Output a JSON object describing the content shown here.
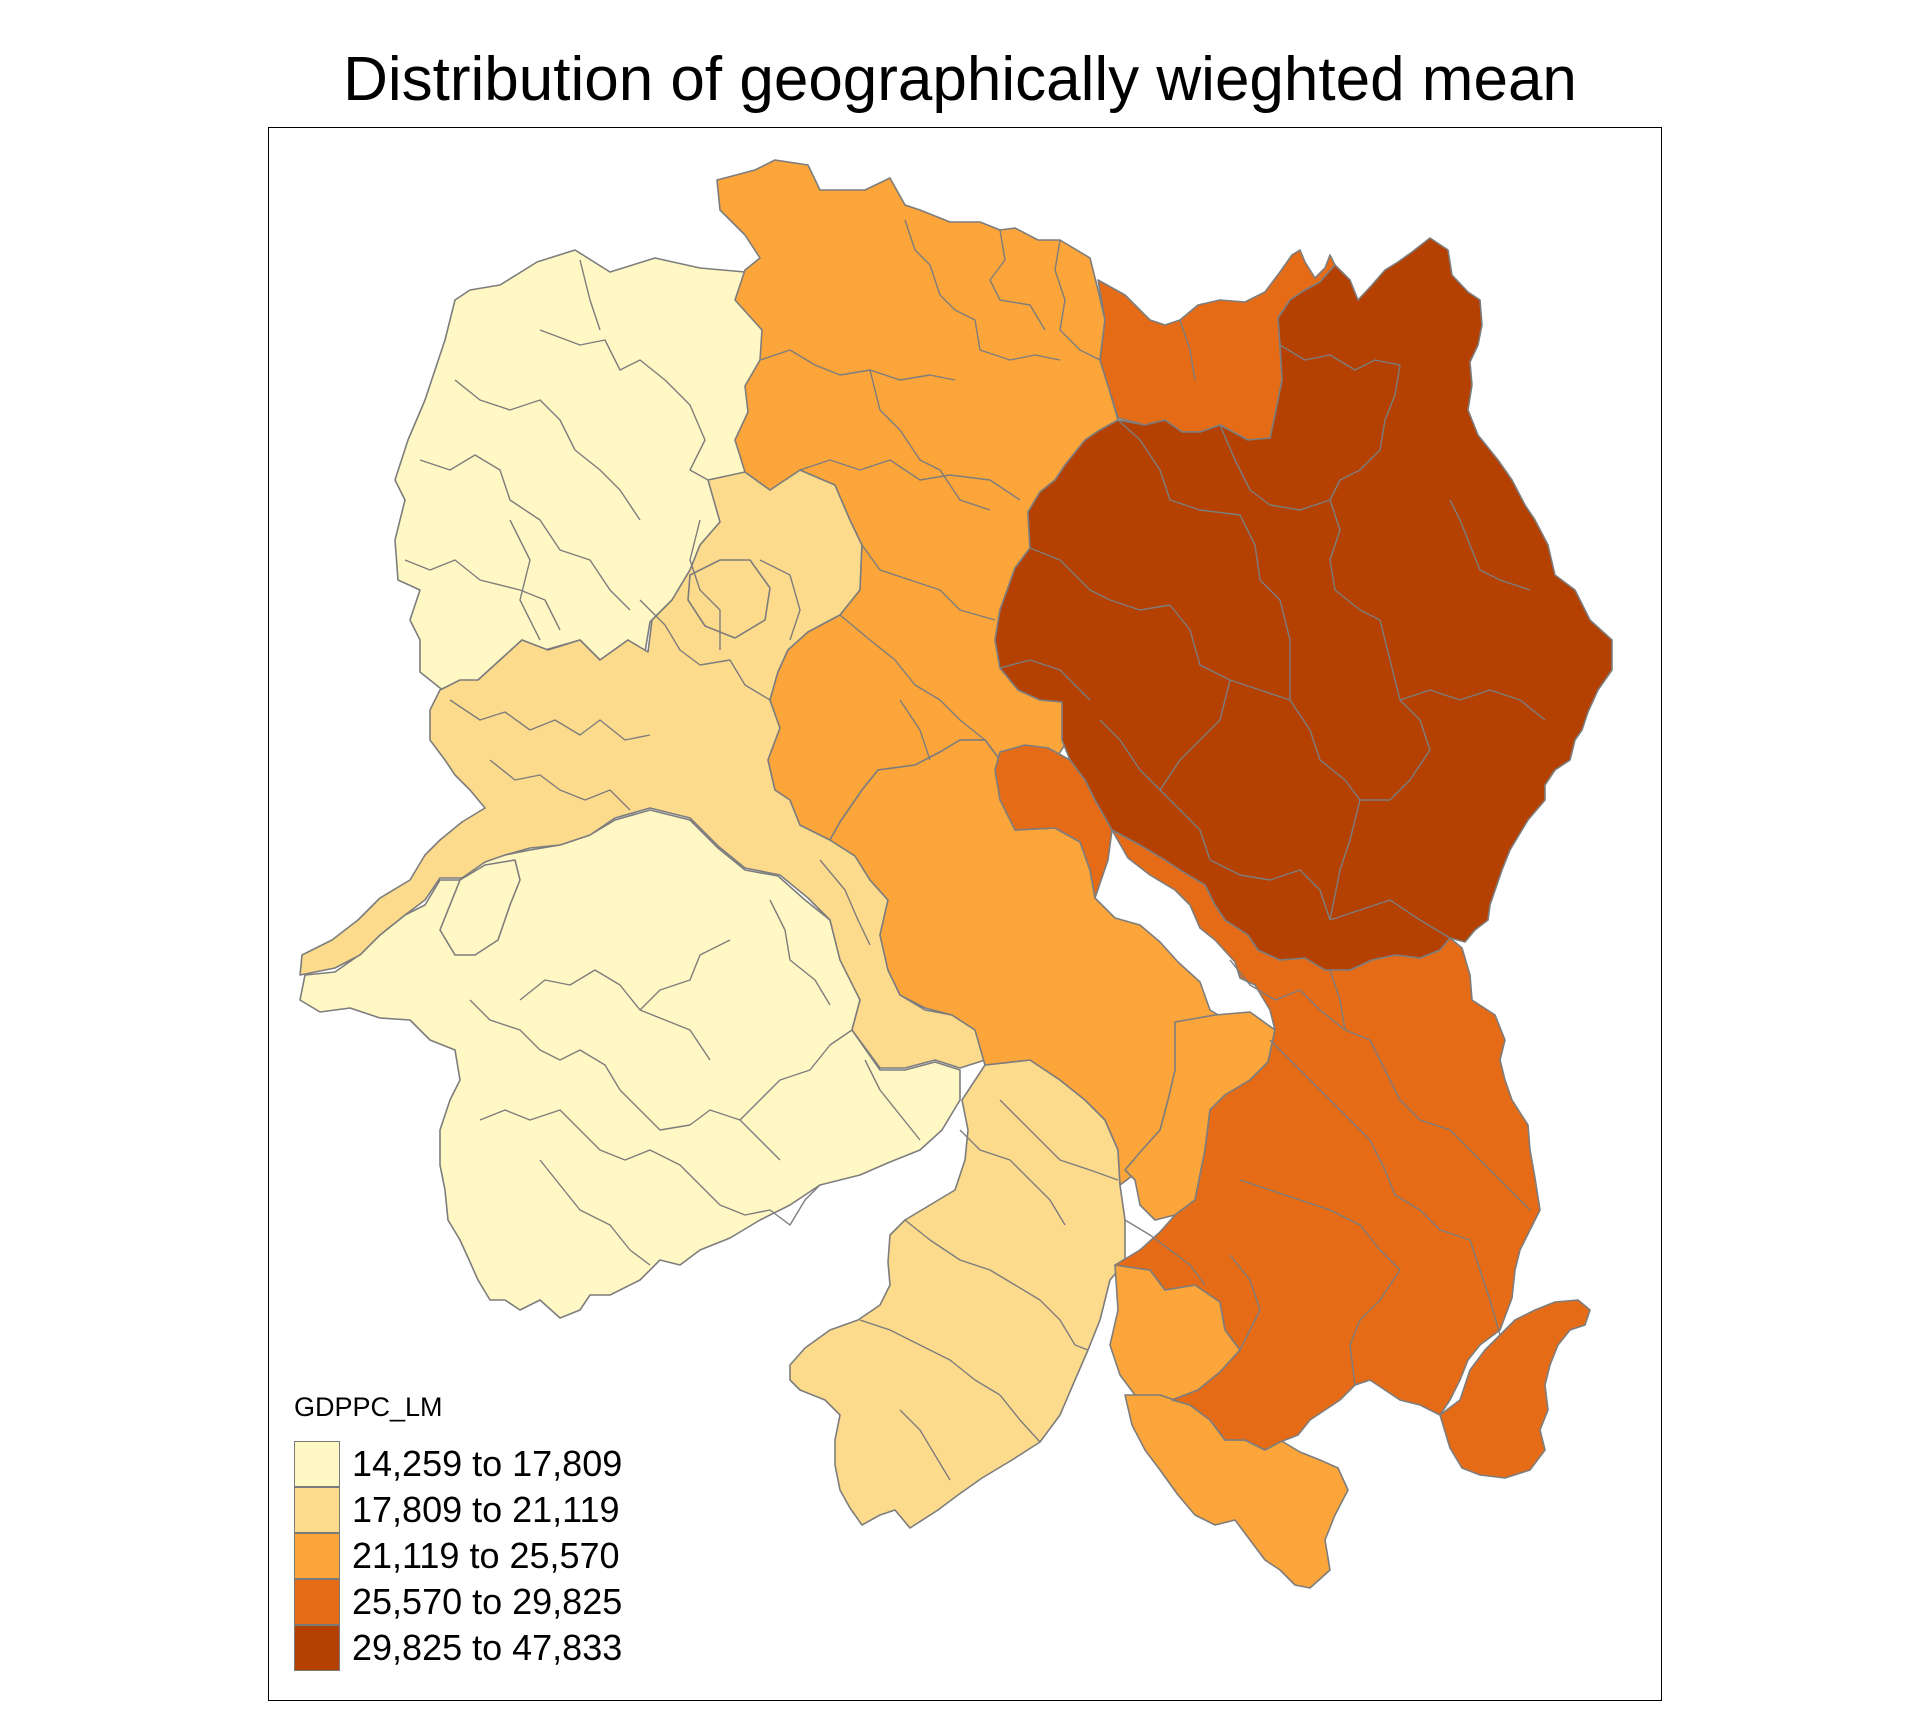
{
  "title": "Distribution of geographically wieghted mean",
  "legend": {
    "title": "GDPPC_LM",
    "classes": [
      {
        "label": "14,259 to 17,809",
        "color": "#FFF7C4"
      },
      {
        "label": "17,809 to 21,119",
        "color": "#FDDB8C"
      },
      {
        "label": "21,119 to 25,570",
        "color": "#FBA53A"
      },
      {
        "label": "25,570 to 29,825",
        "color": "#E56B17"
      },
      {
        "label": "29,825 to 47,833",
        "color": "#B44002"
      }
    ]
  },
  "colors": {
    "boundary": "#7d7d7d",
    "frame": "#000000"
  }
}
